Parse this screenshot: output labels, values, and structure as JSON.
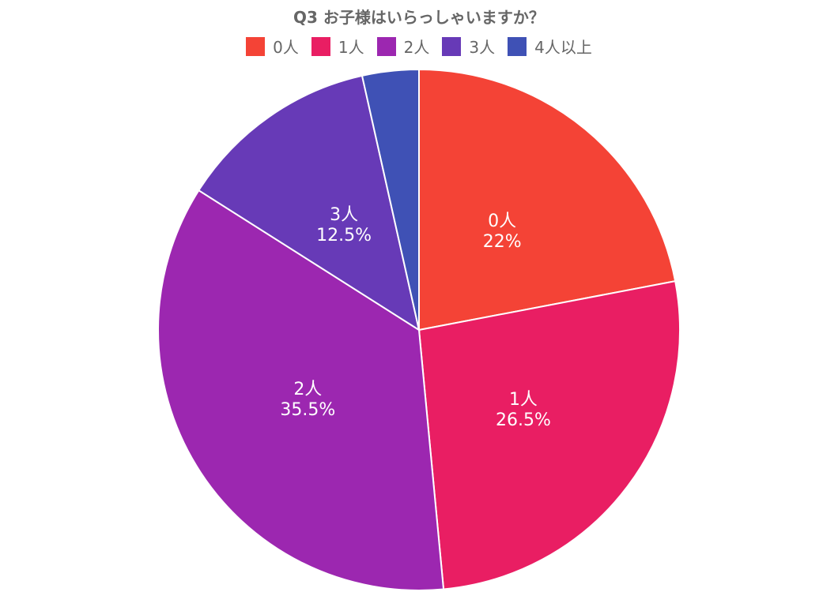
{
  "chart_data": {
    "type": "pie",
    "title": "Q3 お子様はいらっしゃいますか？",
    "categories": [
      "0人",
      "1人",
      "2人",
      "3人",
      "4人以上"
    ],
    "values": [
      22,
      26.5,
      35.5,
      12.5,
      3.5
    ],
    "value_labels": [
      "22%",
      "26.5%",
      "35.5%",
      "12.5%",
      ""
    ],
    "colors": [
      "#f44336",
      "#e91e63",
      "#9c27b0",
      "#673ab7",
      "#3f51b5"
    ],
    "legend_position": "top",
    "start_angle_deg": 0,
    "direction": "clockwise"
  }
}
